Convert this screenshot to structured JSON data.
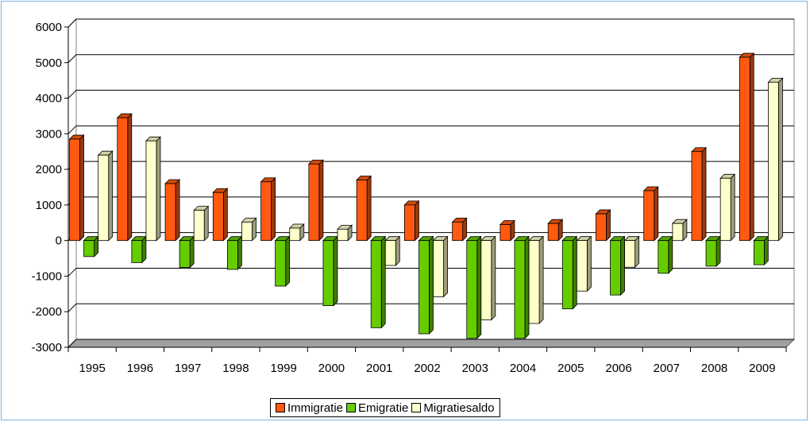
{
  "chart_data": {
    "type": "bar",
    "title": "",
    "xlabel": "",
    "ylabel": "",
    "ylim": [
      -3000,
      6000
    ],
    "yticks": [
      6000,
      5000,
      4000,
      3000,
      2000,
      1000,
      0,
      -1000,
      -2000,
      -3000
    ],
    "categories": [
      "1995",
      "1996",
      "1997",
      "1998",
      "1999",
      "2000",
      "2001",
      "2002",
      "2003",
      "2004",
      "2005",
      "2006",
      "2007",
      "2008",
      "2009"
    ],
    "series": [
      {
        "name": "Immigratie",
        "color": "#ff5a10",
        "values": [
          2850,
          3450,
          1600,
          1350,
          1650,
          2150,
          1700,
          1000,
          520,
          450,
          480,
          750,
          1400,
          2500,
          5150
        ]
      },
      {
        "name": "Emigratie",
        "color": "#66cc00",
        "values": [
          -450,
          -620,
          -760,
          -810,
          -1280,
          -1830,
          -2450,
          -2620,
          -2750,
          -2750,
          -1920,
          -1530,
          -920,
          -720,
          -680
        ]
      },
      {
        "name": "Migratiesaldo",
        "color": "#ffffcc",
        "values": [
          2400,
          2800,
          850,
          520,
          350,
          320,
          -700,
          -1580,
          -2230,
          -2330,
          -1420,
          -750,
          480,
          1750,
          4450
        ]
      }
    ],
    "grid": true,
    "legend": "bottom"
  }
}
